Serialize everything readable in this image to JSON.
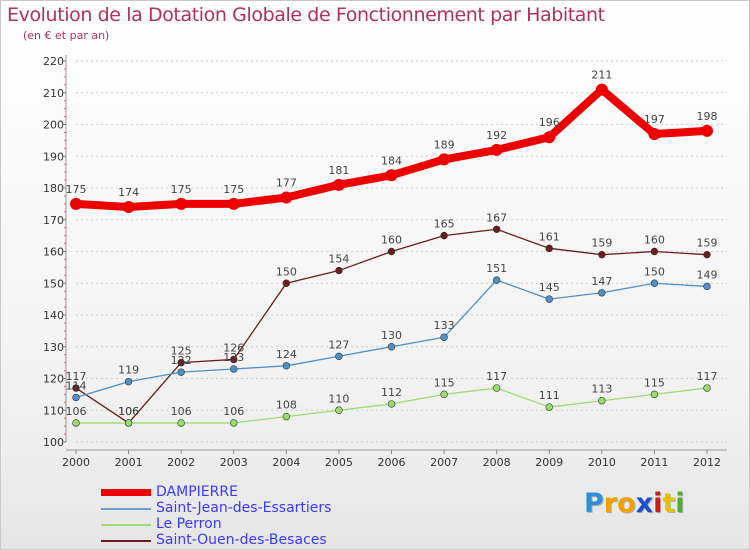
{
  "title": "Evolution de la Dotation Globale de Fonctionnement par Habitant",
  "subtitle": "(en € et par an)",
  "chart_data": {
    "type": "line",
    "title": "Evolution de la Dotation Globale de Fonctionnement par Habitant",
    "subtitle": "(en € et par an)",
    "xlabel": "",
    "ylabel": "",
    "ylim": [
      100,
      220
    ],
    "yticks": [
      "100",
      "110",
      "120",
      "130",
      "140",
      "150",
      "160",
      "170",
      "180",
      "190",
      "200",
      "210",
      "220"
    ],
    "categories": [
      "2000",
      "2001",
      "2002",
      "2003",
      "2004",
      "2005",
      "2006",
      "2007",
      "2008",
      "2009",
      "2010",
      "2011",
      "2012"
    ],
    "grid": "horizontal dashed",
    "legend": "bottom-left",
    "series": [
      {
        "name": "Saint-Ouen-des-Besaces",
        "color": "#6b1c1c",
        "values": [
          117,
          106,
          125,
          126,
          150,
          154,
          160,
          165,
          167,
          161,
          159,
          160,
          159
        ]
      },
      {
        "name": "Le Perron",
        "color": "#99dd6e",
        "values": [
          106,
          106,
          106,
          106,
          108,
          110,
          112,
          115,
          117,
          111,
          113,
          115,
          117
        ]
      },
      {
        "name": "Saint-Jean-des-Essartiers",
        "color": "#4e90c8",
        "values": [
          114,
          119,
          122,
          123,
          124,
          127,
          130,
          133,
          151,
          145,
          147,
          150,
          149
        ]
      },
      {
        "name": "DAMPIERRE",
        "color": "#ee0000",
        "values": [
          175,
          174,
          175,
          175,
          177,
          181,
          184,
          189,
          192,
          196,
          211,
          197,
          198
        ]
      }
    ]
  },
  "legend_items": [
    {
      "label": "DAMPIERRE",
      "color": "#ee0000",
      "text_color": "#3a3aff"
    },
    {
      "label": "Saint-Jean-des-Essartiers",
      "color": "#6aa0d0",
      "text_color": "#3a3aff"
    },
    {
      "label": "Le Perron",
      "color": "#99dd6e",
      "text_color": "#3a3aff"
    },
    {
      "label": "Saint-Ouen-des-Besaces",
      "color": "#6b1c1c",
      "text_color": "#3a3aff"
    }
  ],
  "logo": {
    "letters": [
      "P",
      "r",
      "o",
      "x",
      "i",
      "t",
      "i"
    ],
    "colors": [
      "#2d8fd8",
      "#f0a000",
      "#f0a000",
      "#1a4fd0",
      "#d01a1a",
      "#e8c000",
      "#4caf30"
    ]
  }
}
